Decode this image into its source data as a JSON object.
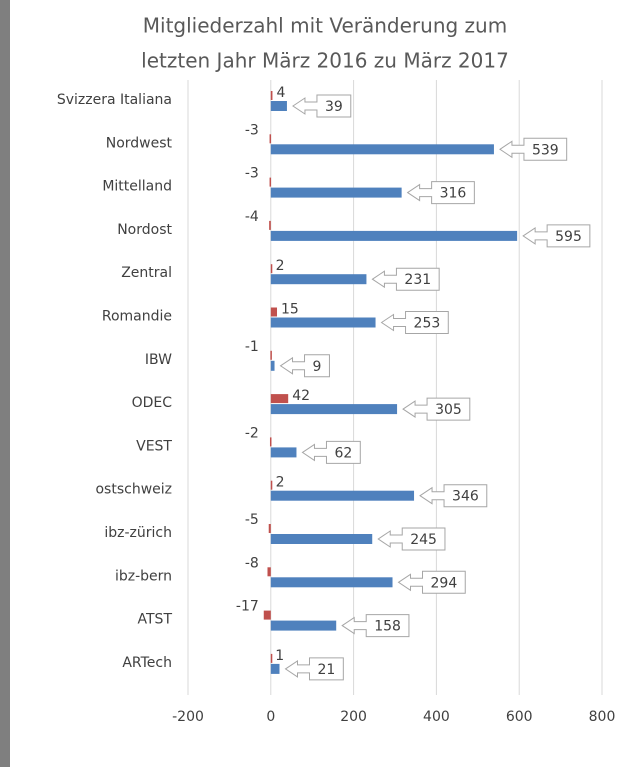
{
  "chart_data": {
    "type": "bar",
    "orientation": "horizontal",
    "title": [
      "Mitgliederzahl mit Veränderung zum",
      "letzten Jahr März 2016 zu März 2017"
    ],
    "categories": [
      "Svizzera Italiana",
      "Nordwest",
      "Mittelland",
      "Nordost",
      "Zentral",
      "Romandie",
      "IBW",
      "ODEC",
      "VEST",
      "ostschweiz",
      "ibz-zürich",
      "ibz-bern",
      "ATST",
      "ARTech"
    ],
    "series": [
      {
        "color": "#c0504d",
        "values": [
          4,
          -3,
          -3,
          -4,
          2,
          15,
          -1,
          42,
          -2,
          2,
          -5,
          -8,
          -17,
          1
        ]
      },
      {
        "color": "#4f81bd",
        "values": [
          39,
          539,
          316,
          595,
          231,
          253,
          9,
          305,
          62,
          346,
          245,
          294,
          158,
          21
        ]
      }
    ],
    "xlim": [
      -200,
      800
    ],
    "xticks": [
      -200,
      0,
      200,
      400,
      600,
      800
    ],
    "grid": true
  }
}
